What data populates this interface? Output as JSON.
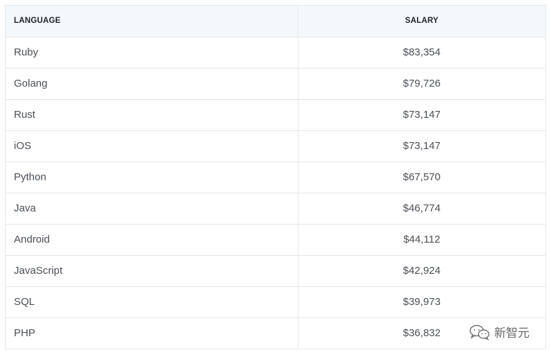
{
  "table": {
    "headers": {
      "language": "LANGUAGE",
      "salary": "SALARY"
    },
    "rows": [
      {
        "language": "Ruby",
        "salary": "$83,354"
      },
      {
        "language": "Golang",
        "salary": "$79,726"
      },
      {
        "language": "Rust",
        "salary": "$73,147"
      },
      {
        "language": "iOS",
        "salary": "$73,147"
      },
      {
        "language": "Python",
        "salary": "$67,570"
      },
      {
        "language": "Java",
        "salary": "$46,774"
      },
      {
        "language": "Android",
        "salary": "$44,112"
      },
      {
        "language": "JavaScript",
        "salary": "$42,924"
      },
      {
        "language": "SQL",
        "salary": "$39,973"
      },
      {
        "language": "PHP",
        "salary": "$36,832"
      }
    ]
  },
  "watermark": {
    "icon": "wechat-icon",
    "text": "新智元"
  },
  "colors": {
    "header_bg": "#f5f8fa",
    "border": "#e3e8ec",
    "cell_text": "#4a4f55",
    "header_text": "#1f2328"
  }
}
